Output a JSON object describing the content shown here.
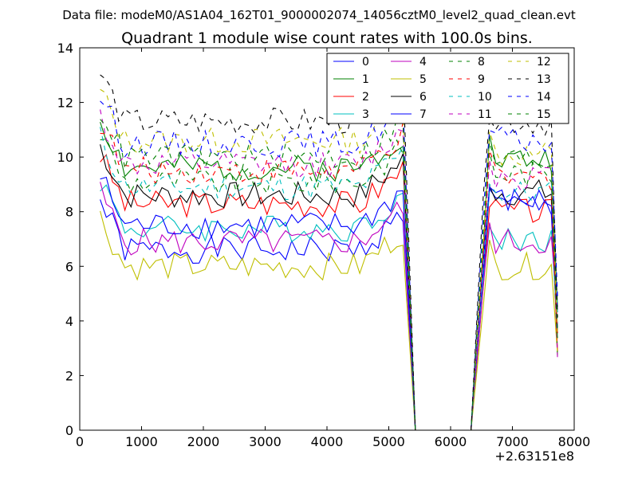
{
  "suptitle": "Data file: modeM0/AS1A04_162T01_9000002074_14056cztM0_level2_quad_clean.evt",
  "chart_data": {
    "type": "line",
    "title": "Quadrant 1 module wise count rates with 100.0s bins.",
    "xlabel": "",
    "ylabel": "",
    "xlim": [
      0,
      8000
    ],
    "ylim": [
      0,
      14
    ],
    "x_ticks": [
      0,
      1000,
      2000,
      3000,
      4000,
      5000,
      6000,
      7000,
      8000
    ],
    "y_ticks": [
      0,
      2,
      4,
      6,
      8,
      10,
      12,
      14
    ],
    "x_offset_label": "+2.63151e8",
    "legend_location": "top-right",
    "legend_columns": 4,
    "grid": false,
    "time_segments": [
      {
        "start": 330,
        "step": 100,
        "count": 50
      },
      {
        "start": 5430,
        "step": 100,
        "count": 10,
        "value": 0
      },
      {
        "start": 6530,
        "step": 100,
        "count": 13
      }
    ],
    "series": [
      {
        "name": "0",
        "color": "#0000ff",
        "style": "solid",
        "base1": 6.6,
        "base2": 8.2,
        "seed": 1
      },
      {
        "name": "1",
        "color": "#008000",
        "style": "solid",
        "base1": 9.6,
        "base2": 9.9,
        "seed": 2
      },
      {
        "name": "2",
        "color": "#ff0000",
        "style": "solid",
        "base1": 8.3,
        "base2": 8.0,
        "seed": 3
      },
      {
        "name": "3",
        "color": "#00bfbf",
        "style": "solid",
        "base1": 7.4,
        "base2": 7.0,
        "seed": 4
      },
      {
        "name": "4",
        "color": "#bf00bf",
        "style": "solid",
        "base1": 6.9,
        "base2": 6.9,
        "seed": 5
      },
      {
        "name": "5",
        "color": "#bfbf00",
        "style": "solid",
        "base1": 6.0,
        "base2": 6.0,
        "seed": 6
      },
      {
        "name": "6",
        "color": "#000000",
        "style": "solid",
        "base1": 8.6,
        "base2": 8.7,
        "seed": 7
      },
      {
        "name": "7",
        "color": "#0000ff",
        "style": "solid",
        "base1": 7.5,
        "base2": 8.4,
        "seed": 8
      },
      {
        "name": "8",
        "color": "#008000",
        "style": "dashed",
        "base1": 9.1,
        "base2": 9.4,
        "seed": 9
      },
      {
        "name": "9",
        "color": "#ff0000",
        "style": "dashed",
        "base1": 9.5,
        "base2": 9.2,
        "seed": 10
      },
      {
        "name": "10",
        "color": "#00bfbf",
        "style": "dashed",
        "base1": 8.9,
        "base2": 8.7,
        "seed": 11
      },
      {
        "name": "11",
        "color": "#bf00bf",
        "style": "dashed",
        "base1": 9.7,
        "base2": 9.3,
        "seed": 12
      },
      {
        "name": "12",
        "color": "#bfbf00",
        "style": "dashed",
        "base1": 10.6,
        "base2": 10.1,
        "seed": 13
      },
      {
        "name": "13",
        "color": "#000000",
        "style": "dashed",
        "base1": 11.3,
        "base2": 11.3,
        "seed": 14
      },
      {
        "name": "14",
        "color": "#0000ff",
        "style": "dashed",
        "base1": 10.5,
        "base2": 10.6,
        "seed": 15
      },
      {
        "name": "15",
        "color": "#008000",
        "style": "dashed",
        "base1": 10.0,
        "base2": 9.9,
        "seed": 16
      }
    ]
  }
}
